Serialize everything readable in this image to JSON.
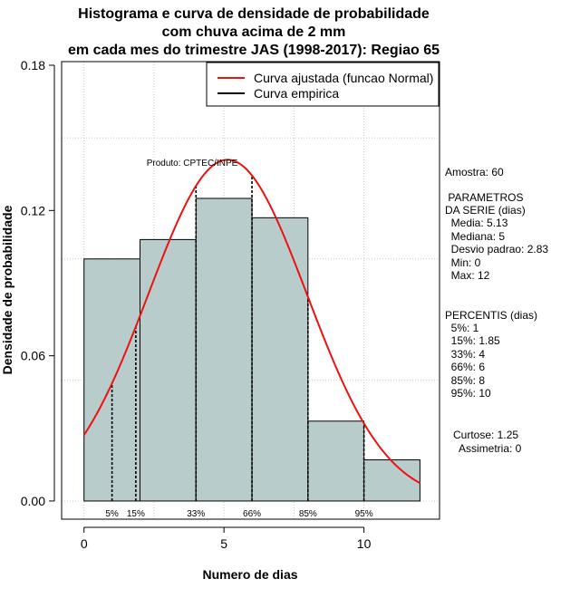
{
  "chart_data": {
    "type": "bar",
    "title_lines": [
      "Histograma e curva de densidade de probabilidade",
      "com chuva acima de 2 mm",
      "em cada mes do trimestre JAS (1998-2017): Regiao 65"
    ],
    "xlabel": "Numero de dias",
    "ylabel": "Densidade de probabilidade",
    "xlim": [
      -0.8,
      12.7
    ],
    "ylim": [
      -0.0075,
      0.1815
    ],
    "x_ticks": [
      0,
      5,
      10
    ],
    "y_ticks": [
      0.0,
      0.06,
      0.12,
      0.18
    ],
    "y_tick_labels": [
      "0.00",
      "0.06",
      "0.12",
      "0.18"
    ],
    "grid": true,
    "bin_edges": [
      0,
      2,
      4,
      6,
      8,
      10,
      12
    ],
    "densities": [
      0.1,
      0.108,
      0.125,
      0.117,
      0.033,
      0.017
    ],
    "bar_color": "#b8cccc",
    "normal_fit": {
      "mean": 5.13,
      "sd": 2.83
    },
    "percentile_marks": [
      {
        "label": "5%",
        "x": 1
      },
      {
        "label": "15%",
        "x": 1.85
      },
      {
        "label": "33%",
        "x": 4
      },
      {
        "label": "66%",
        "x": 6
      },
      {
        "label": "85%",
        "x": 8
      },
      {
        "label": "95%",
        "x": 10
      }
    ],
    "legend_position": "top-right",
    "legend": [
      {
        "name": "Curva ajustada (funcao Normal)",
        "color": "#ee1111"
      },
      {
        "name": "Curva empirica",
        "color": "#000000"
      }
    ],
    "product_label": "Produto: CPTEC/INPE"
  },
  "stats": {
    "amostra": "Amostra: 60",
    "parametros_title": " PARAMETROS",
    "parametros_subtitle": "DA SERIE (dias)",
    "parametros": [
      "  Media: 5.13",
      "  Mediana: 5",
      "  Desvio padrao: 2.83",
      "  Min: 0",
      "  Max: 12"
    ],
    "percentis_title": "PERCENTIS (dias)",
    "percentis": [
      "  5%: 1",
      "  15%: 1.85",
      "  33%: 4",
      "  66%: 6",
      "  85%: 8",
      "  95%: 10"
    ],
    "curtose": "Curtose: 1.25",
    "assimetria": "  Assimetria: 0"
  }
}
